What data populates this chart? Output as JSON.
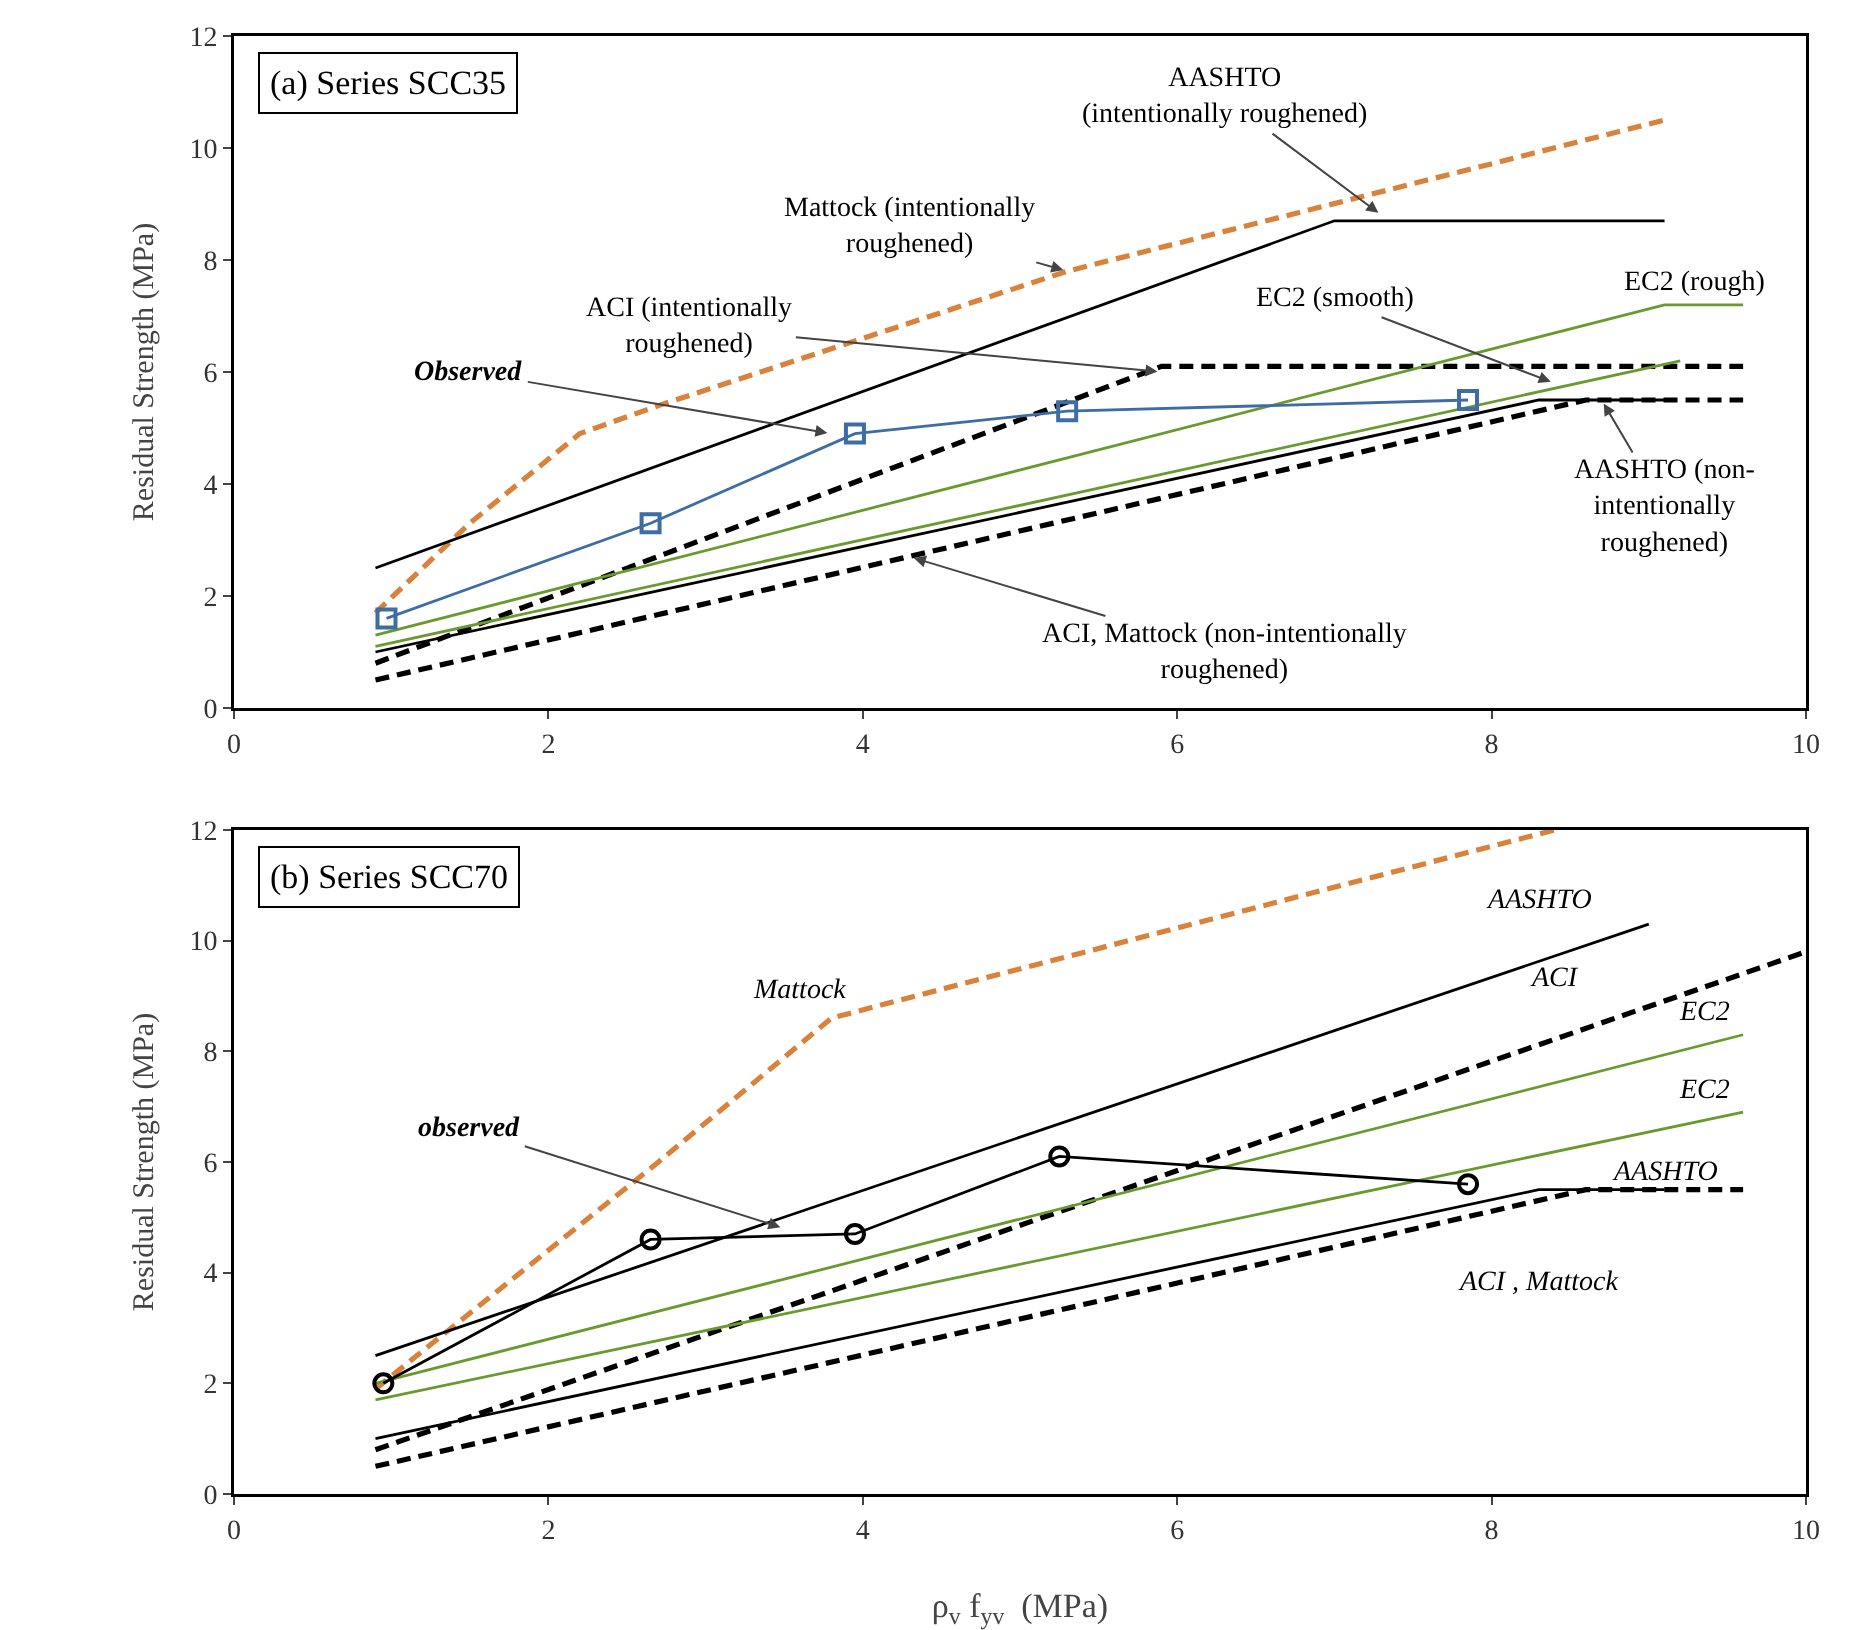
{
  "chart_data": [
    {
      "type": "line",
      "title": "(a) Series SCC35",
      "ylabel": "Residual Strength (MPa)",
      "xlim": [
        0,
        10
      ],
      "ylim": [
        0,
        12
      ],
      "xticks": [
        0,
        2,
        4,
        6,
        8,
        10
      ],
      "yticks": [
        0,
        2,
        4,
        6,
        8,
        10,
        12
      ],
      "grid": false,
      "series": [
        {
          "color": "#d9823b",
          "line_style": "dashed",
          "x": [
            0.9,
            1.5,
            2.2,
            2.7,
            5.3,
            9.1
          ],
          "values": [
            1.7,
            3.3,
            4.9,
            5.4,
            7.8,
            10.5
          ]
        },
        {
          "color": "#000000",
          "line_style": "solid",
          "x": [
            0.9,
            7.0,
            9.1
          ],
          "values": [
            2.5,
            8.7,
            8.7
          ]
        },
        {
          "color": "#000000",
          "line_style": "dashed",
          "x": [
            0.9,
            5.9,
            9.6
          ],
          "values": [
            0.8,
            6.1,
            6.1
          ]
        },
        {
          "color": "#6a9a2e",
          "line_style": "solid",
          "x": [
            0.9,
            9.1,
            9.6
          ],
          "values": [
            1.3,
            7.2,
            7.2
          ]
        },
        {
          "color": "#6a9a2e",
          "line_style": "solid",
          "x": [
            0.9,
            9.2
          ],
          "values": [
            1.1,
            6.2
          ]
        },
        {
          "color": "#000000",
          "line_style": "solid",
          "x": [
            0.9,
            8.3,
            9.1
          ],
          "values": [
            1.0,
            5.5,
            5.5
          ]
        },
        {
          "color": "#000000",
          "line_style": "dashed",
          "x": [
            0.9,
            8.6,
            9.6
          ],
          "values": [
            0.5,
            5.5,
            5.5
          ]
        },
        {
          "color": "#3d6da3",
          "line_style": "solid",
          "marker": "square",
          "x": [
            0.97,
            2.65,
            3.95,
            5.3,
            7.85
          ],
          "values": [
            1.6,
            3.3,
            4.9,
            5.3,
            5.5
          ]
        }
      ],
      "annotations": [
        {
          "text": "AASHTO\n(intentionally roughened)",
          "x": 7.3,
          "y": 8.8
        },
        {
          "text": "Mattock (intentionally\nroughened)",
          "x": 5.3,
          "y": 7.8
        },
        {
          "text": "ACI (intentionally\nroughened)",
          "x": 5.9,
          "y": 6.0
        },
        {
          "text": "EC2 (smooth)",
          "x": 8.4,
          "y": 5.8
        },
        "EC2 (rough)",
        {
          "text": "Observed",
          "x": 3.8,
          "y": 4.9
        },
        {
          "text": "AASHTO (non-\nintentionally\nroughened)",
          "x": 8.7,
          "y": 5.5
        },
        {
          "text": "ACI, Mattock (non-intentionally\nroughened)",
          "x": 4.3,
          "y": 2.7
        }
      ]
    },
    {
      "type": "line",
      "title": "(b) Series SCC70",
      "xlabel": "ρ$_{v}$ f$_{yv}$  (MPa)",
      "ylabel": "Residual Strength (MPa)",
      "xlim": [
        0,
        10
      ],
      "ylim": [
        0,
        12
      ],
      "xticks": [
        0,
        2,
        4,
        6,
        8,
        10
      ],
      "yticks": [
        0,
        2,
        4,
        6,
        8,
        10,
        12
      ],
      "grid": false,
      "series": [
        {
          "color": "#d9823b",
          "line_style": "dashed",
          "x": [
            0.9,
            2.7,
            3.8,
            4.2,
            8.4
          ],
          "values": [
            1.9,
            6.0,
            8.6,
            8.9,
            12.0
          ]
        },
        {
          "color": "#000000",
          "line_style": "solid",
          "x": [
            0.9,
            9.0
          ],
          "values": [
            2.5,
            10.3
          ]
        },
        {
          "color": "#000000",
          "line_style": "dashed",
          "x": [
            0.9,
            10.0
          ],
          "values": [
            0.8,
            9.8
          ]
        },
        {
          "color": "#6a9a2e",
          "line_style": "solid",
          "x": [
            0.9,
            9.6
          ],
          "values": [
            2.0,
            8.3
          ]
        },
        {
          "color": "#6a9a2e",
          "line_style": "solid",
          "x": [
            0.9,
            9.6
          ],
          "values": [
            1.7,
            6.9
          ]
        },
        {
          "color": "#000000",
          "line_style": "solid",
          "x": [
            0.9,
            8.3,
            9.1
          ],
          "values": [
            1.0,
            5.5,
            5.5
          ]
        },
        {
          "color": "#000000",
          "line_style": "dashed",
          "x": [
            0.9,
            8.6,
            9.6
          ],
          "values": [
            0.5,
            5.5,
            5.5
          ]
        },
        {
          "color": "#000000",
          "line_style": "solid",
          "marker": "circle",
          "x": [
            0.95,
            2.65,
            3.95,
            5.25,
            7.85
          ],
          "values": [
            2.0,
            4.6,
            4.7,
            6.1,
            5.6
          ]
        }
      ],
      "annotations": [
        "AASHTO",
        "Mattock",
        "ACI",
        "EC2",
        "EC2",
        "AASHTO",
        "ACI , Mattock",
        {
          "text": "observed",
          "x": 3.5,
          "y": 4.8
        }
      ]
    }
  ]
}
